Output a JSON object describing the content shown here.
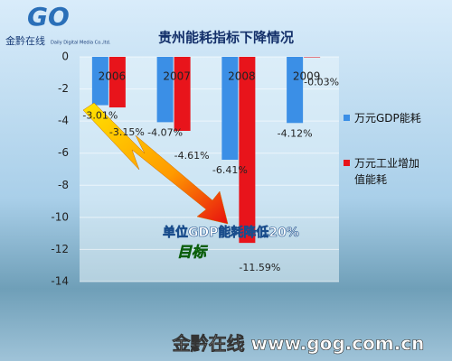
{
  "logo": {
    "mark": "GO",
    "name": "金黔在线",
    "tagline": "Daily Digital Media Co.,ltd."
  },
  "footer": "金黔在线 www.gog.com.cn",
  "chart_data": {
    "type": "bar",
    "title": "贵州能耗指标下降情况",
    "categories": [
      "2006",
      "2007",
      "2008",
      "2009"
    ],
    "series": [
      {
        "name": "万元GDP能耗",
        "color": "#3b8fe6",
        "values": [
          -3.01,
          -4.07,
          -6.41,
          -4.12
        ],
        "value_labels": [
          "-3.01%",
          "-4.07%",
          "-6.41%",
          "-4.12%"
        ]
      },
      {
        "name": "万元工业增加值能耗",
        "color": "#e8141b",
        "values": [
          -3.15,
          -4.61,
          -11.59,
          -0.03
        ],
        "value_labels": [
          "-3.15%",
          "-4.61%",
          "-11.59%",
          "-0.03%"
        ]
      }
    ],
    "ylim": [
      -14,
      0
    ],
    "yticks": [
      0,
      -2,
      -4,
      -6,
      -8,
      -10,
      -12,
      -14
    ],
    "grid": true,
    "legend": "right",
    "annotations": [
      "单位GDP能耗降低20%",
      "目标"
    ]
  }
}
